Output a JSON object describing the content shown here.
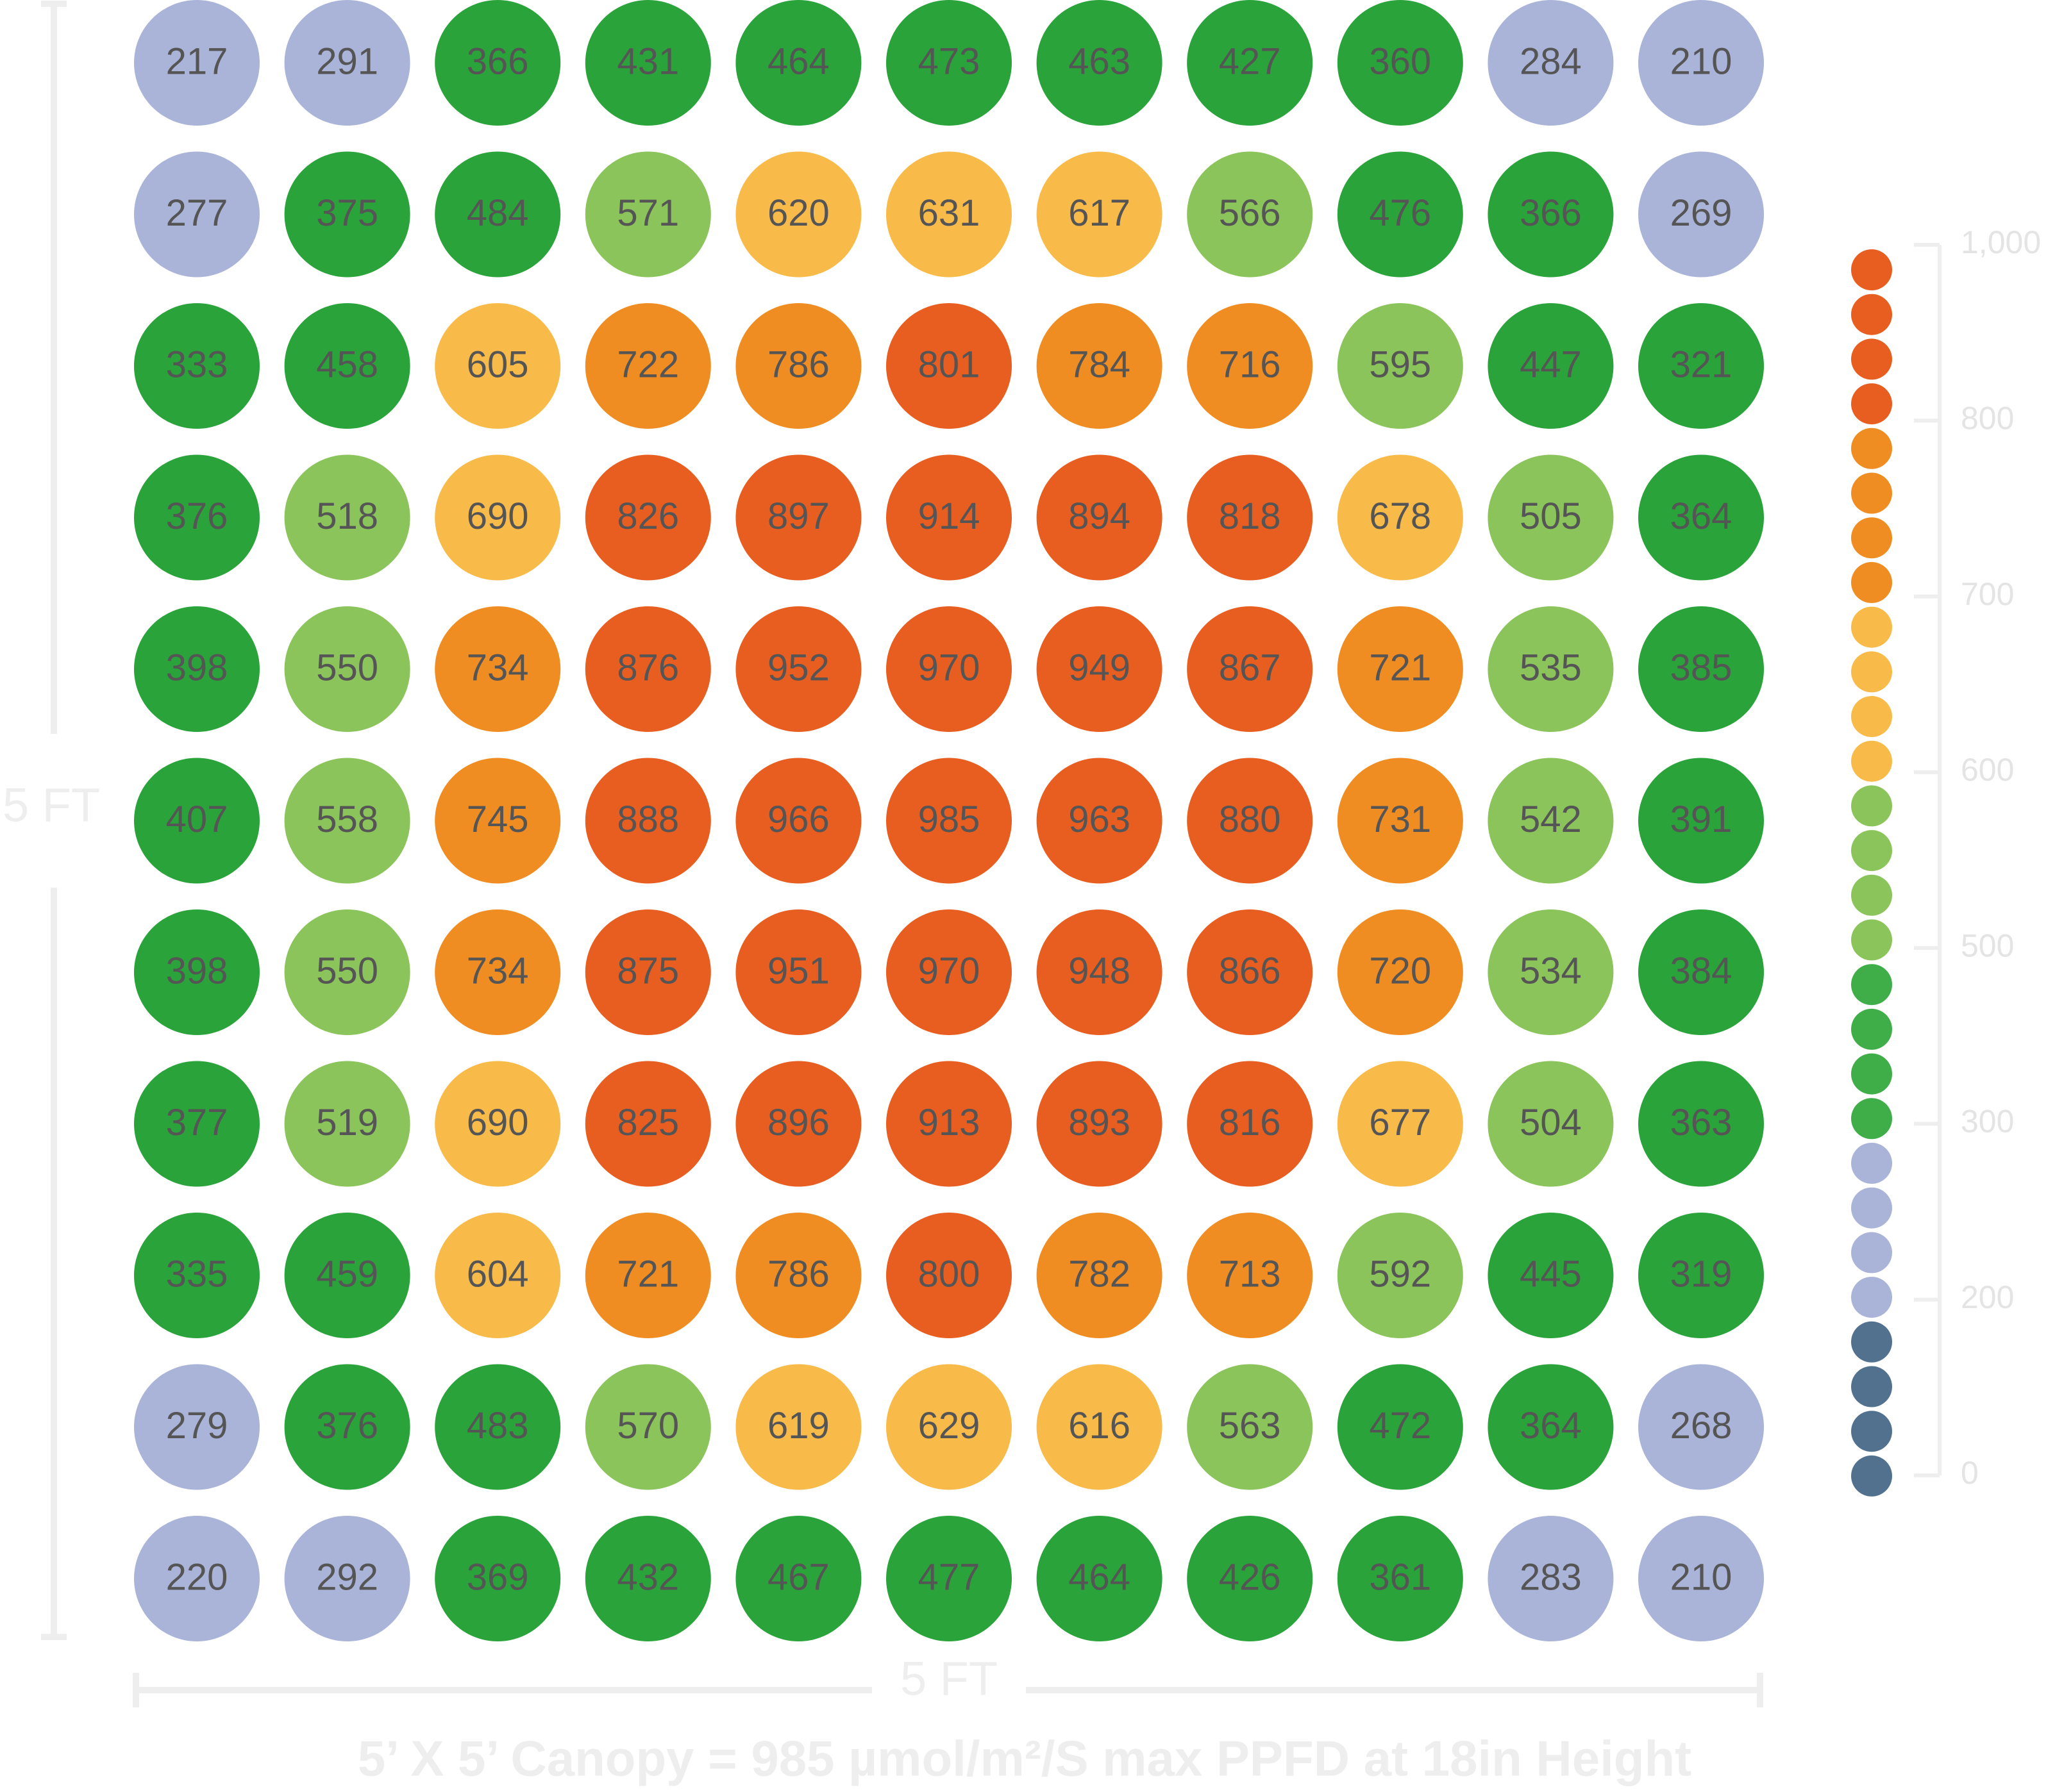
{
  "title": "5’ X 5’ Canopy = 985 µmol/m²/S max PPFD at 18in Height",
  "width_label": "5 FT",
  "height_label": "5 FT",
  "grid": [
    [
      217,
      291,
      366,
      431,
      464,
      473,
      463,
      427,
      360,
      284,
      210
    ],
    [
      277,
      375,
      484,
      571,
      620,
      631,
      617,
      566,
      476,
      366,
      269
    ],
    [
      333,
      458,
      605,
      722,
      786,
      801,
      784,
      716,
      595,
      447,
      321
    ],
    [
      376,
      518,
      690,
      826,
      897,
      914,
      894,
      818,
      678,
      505,
      364
    ],
    [
      398,
      550,
      734,
      876,
      952,
      970,
      949,
      867,
      721,
      535,
      385
    ],
    [
      407,
      558,
      745,
      888,
      966,
      985,
      963,
      880,
      731,
      542,
      391
    ],
    [
      398,
      550,
      734,
      875,
      951,
      970,
      948,
      866,
      720,
      534,
      384
    ],
    [
      377,
      519,
      690,
      825,
      896,
      913,
      893,
      816,
      677,
      504,
      363
    ],
    [
      335,
      459,
      604,
      721,
      786,
      800,
      782,
      713,
      592,
      445,
      319
    ],
    [
      279,
      376,
      483,
      570,
      619,
      629,
      616,
      563,
      472,
      364,
      268
    ],
    [
      220,
      292,
      369,
      432,
      467,
      477,
      464,
      426,
      361,
      283,
      210
    ]
  ],
  "legend": {
    "ticks": [
      {
        "value": 1000,
        "label": "1,000"
      },
      800,
      700,
      600,
      500,
      300,
      200,
      0
    ],
    "colors": [
      "#e85d20",
      "#ef8d22",
      "#f8bb4a",
      "#8bc45a",
      "#29a33a",
      "#aab4d8",
      "#52718f"
    ]
  }
}
